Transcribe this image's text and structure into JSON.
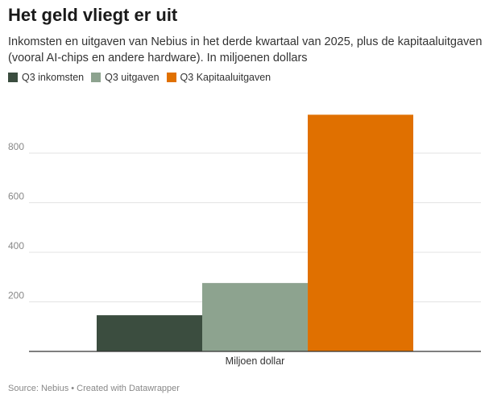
{
  "title": "Het geld vliegt er uit",
  "subtitle": "Inkomsten en uitgaven van Nebius in het derde kwartaal van 2025, plus de kapitaaluitgaven (vooral AI-chips en andere hardware). In miljoenen dollars",
  "footer": "Source: Nebius • Created with Datawrapper",
  "colors": {
    "inkomsten": "#3b4d3f",
    "uitgaven": "#8da38f",
    "kapitaal": "#e07000",
    "grid": "#e3e3e3",
    "axis": "#333333",
    "tick_text": "#888888"
  },
  "chart_data": {
    "type": "bar",
    "categories": [
      "Miljoen dollar"
    ],
    "series": [
      {
        "name": "Q3 inkomsten",
        "values": [
          146
        ]
      },
      {
        "name": "Q3 uitgaven",
        "values": [
          276
        ]
      },
      {
        "name": "Q3 Kapitaaluitgaven",
        "values": [
          955
        ]
      }
    ],
    "yticks": [
      200,
      400,
      600,
      800
    ],
    "ylim": [
      0,
      1000
    ],
    "grid": true,
    "legend": "top-left",
    "xlabel": "",
    "ylabel": ""
  }
}
